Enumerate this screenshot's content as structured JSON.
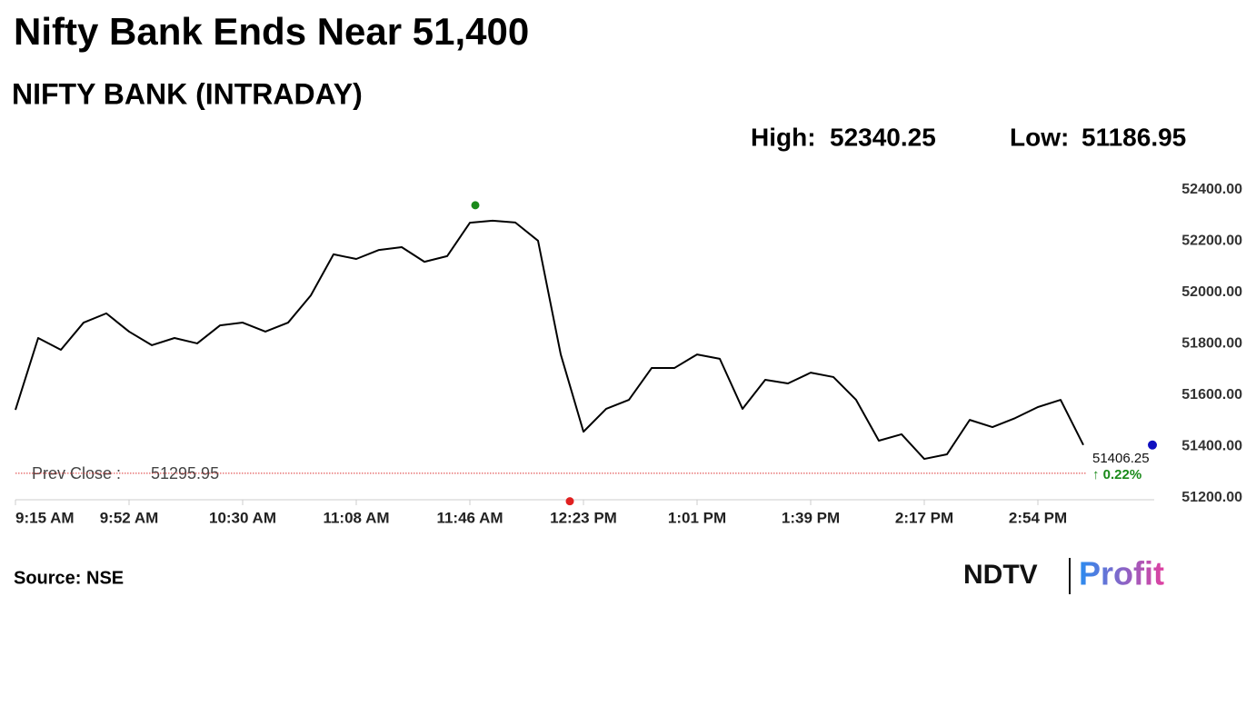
{
  "chart_data": {
    "type": "line",
    "title": "Nifty Bank Ends Near 51,400",
    "subtitle": "NIFTY BANK (INTRADAY)",
    "high_text": "High:",
    "high": 52340.25,
    "low_text": "Low:",
    "low": 51186.95,
    "prev_close_text": "Prev Close :",
    "prev_close": 51295.95,
    "change": {
      "value": 0.22,
      "label": "↑ 0.22%"
    },
    "categories": [
      "9:15 AM",
      null,
      null,
      null,
      null,
      "9:52 AM",
      null,
      null,
      null,
      null,
      "10:30 AM",
      null,
      null,
      null,
      null,
      "11:08 AM",
      null,
      null,
      null,
      null,
      "11:46 AM",
      null,
      null,
      null,
      null,
      "12:23 PM",
      null,
      null,
      null,
      null,
      "1:01 PM",
      null,
      null,
      null,
      null,
      "1:39 PM",
      null,
      null,
      null,
      null,
      "2:17 PM",
      null,
      null,
      null,
      null,
      "2:54 PM",
      null,
      null
    ],
    "values": [
      51543,
      51823,
      51777,
      51883,
      51919,
      51848,
      51795,
      51823,
      51802,
      51872,
      51883,
      51848,
      51883,
      51989,
      52149,
      52131,
      52166,
      52177,
      52120,
      52142,
      52272,
      52280,
      52273,
      52202,
      51759,
      51458,
      51547,
      51582,
      51706,
      51706,
      51759,
      51742,
      51547,
      51660,
      51646,
      51688,
      51671,
      51582,
      51423,
      51448,
      51352,
      51370,
      51504,
      51476,
      51511,
      51554,
      51582,
      51406.25
    ],
    "color": "#000000",
    "ylim": [
      51200,
      52400
    ],
    "yticks": [
      {
        "value": 52400,
        "label": "52400.00"
      },
      {
        "value": 52200,
        "label": "52200.00"
      },
      {
        "value": 52000,
        "label": "52000.00"
      },
      {
        "value": 51800,
        "label": "51800.00"
      },
      {
        "value": 51600,
        "label": "51600.00"
      },
      {
        "value": 51400,
        "label": "51400.00"
      },
      {
        "value": 51200,
        "label": "51200.00"
      }
    ],
    "source": "Source: NSE",
    "logo": [
      "NDTV",
      "Profit"
    ]
  }
}
